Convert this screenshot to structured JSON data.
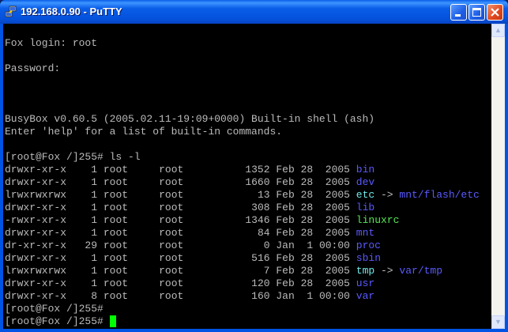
{
  "window": {
    "title": "192.168.0.90 - PuTTY",
    "icon": "putty-icon"
  },
  "colors": {
    "text": "#bbbbbb",
    "directory": "#5a5aff",
    "symlink": "#70e8e8",
    "executable": "#55e855",
    "cursor": "#00ff00"
  },
  "terminal": {
    "intro": [
      "",
      "Fox login: root",
      "",
      "Password:",
      "",
      "",
      "",
      "BusyBox v0.60.5 (2005.02.11-19:09+0000) Built-in shell (ash)",
      "Enter 'help' for a list of built-in commands.",
      ""
    ],
    "command": "[root@Fox /]255# ls -l",
    "listing": [
      {
        "perms": "drwxr-xr-x",
        "links": "1",
        "owner": "root",
        "group": "root",
        "size": "1352",
        "date": "Feb 28  2005",
        "name": "bin",
        "type": "dir"
      },
      {
        "perms": "drwxr-xr-x",
        "links": "1",
        "owner": "root",
        "group": "root",
        "size": "1660",
        "date": "Feb 28  2005",
        "name": "dev",
        "type": "dir"
      },
      {
        "perms": "lrwxrwxrwx",
        "links": "1",
        "owner": "root",
        "group": "root",
        "size": "13",
        "date": "Feb 28  2005",
        "name": "etc",
        "type": "link",
        "target": "mnt/flash/etc"
      },
      {
        "perms": "drwxr-xr-x",
        "links": "1",
        "owner": "root",
        "group": "root",
        "size": "308",
        "date": "Feb 28  2005",
        "name": "lib",
        "type": "dir"
      },
      {
        "perms": "-rwxr-xr-x",
        "links": "1",
        "owner": "root",
        "group": "root",
        "size": "1346",
        "date": "Feb 28  2005",
        "name": "linuxrc",
        "type": "exec"
      },
      {
        "perms": "drwxr-xr-x",
        "links": "1",
        "owner": "root",
        "group": "root",
        "size": "84",
        "date": "Feb 28  2005",
        "name": "mnt",
        "type": "dir"
      },
      {
        "perms": "dr-xr-xr-x",
        "links": "29",
        "owner": "root",
        "group": "root",
        "size": "0",
        "date": "Jan  1 00:00",
        "name": "proc",
        "type": "dir"
      },
      {
        "perms": "drwxr-xr-x",
        "links": "1",
        "owner": "root",
        "group": "root",
        "size": "516",
        "date": "Feb 28  2005",
        "name": "sbin",
        "type": "dir"
      },
      {
        "perms": "lrwxrwxrwx",
        "links": "1",
        "owner": "root",
        "group": "root",
        "size": "7",
        "date": "Feb 28  2005",
        "name": "tmp",
        "type": "link",
        "target": "var/tmp"
      },
      {
        "perms": "drwxr-xr-x",
        "links": "1",
        "owner": "root",
        "group": "root",
        "size": "120",
        "date": "Feb 28  2005",
        "name": "usr",
        "type": "dir"
      },
      {
        "perms": "drwxr-xr-x",
        "links": "8",
        "owner": "root",
        "group": "root",
        "size": "160",
        "date": "Jan  1 00:00",
        "name": "var",
        "type": "dir"
      }
    ],
    "prompts": [
      "[root@Fox /]255#",
      "[root@Fox /]255# "
    ],
    "arrow": " -> "
  }
}
